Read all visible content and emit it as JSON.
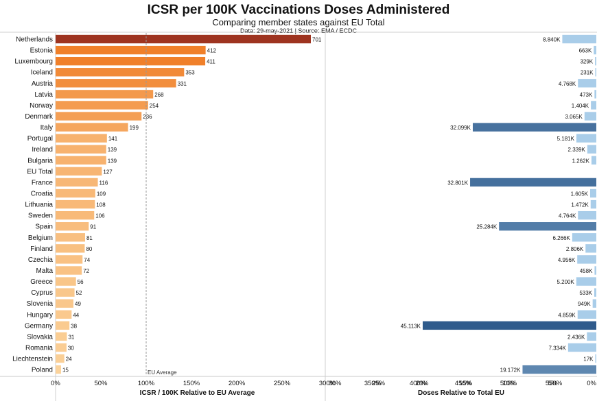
{
  "header": {
    "title": "ICSR per 100K Vaccinations Doses Administered",
    "subtitle": "Comparing member states against EU Total",
    "meta": "Data: 29-may-2021 | Source: EMA / ECDC"
  },
  "chart_data": [
    {
      "type": "bar",
      "orientation": "horizontal",
      "categories": [
        "Netherlands",
        "Estonia",
        "Luxembourg",
        "Iceland",
        "Austria",
        "Latvia",
        "Norway",
        "Denmark",
        "Italy",
        "Portugal",
        "Ireland",
        "Bulgaria",
        "EU Total",
        "France",
        "Croatia",
        "Lithuania",
        "Sweden",
        "Spain",
        "Belgium",
        "Finland",
        "Czechia",
        "Malta",
        "Greece",
        "Cyprus",
        "Slovenia",
        "Hungary",
        "Germany",
        "Slovakia",
        "Romania",
        "Liechtenstein",
        "Poland"
      ],
      "values": [
        701,
        412,
        411,
        353,
        331,
        268,
        254,
        236,
        199,
        141,
        139,
        139,
        127,
        116,
        109,
        108,
        106,
        91,
        81,
        80,
        74,
        72,
        56,
        52,
        49,
        44,
        38,
        31,
        30,
        24,
        15
      ],
      "value_labels": [
        "701",
        "412",
        "411",
        "353",
        "331",
        "268",
        "254",
        "236",
        "199",
        "141",
        "139",
        "139",
        "127",
        "116",
        "109",
        "108",
        "106",
        "91",
        "81",
        "80",
        "74",
        "72",
        "56",
        "52",
        "49",
        "44",
        "38",
        "31",
        "30",
        "24",
        "15"
      ],
      "xlabel": "ICSR / 100K Relative to EU Average",
      "x_ticks": [
        "0%",
        "50%",
        "100%",
        "150%",
        "200%",
        "250%",
        "300%",
        "350%",
        "400%",
        "450%",
        "500%",
        "550%"
      ],
      "reference_line": {
        "label": "EU Average",
        "value": 127
      },
      "colors": {
        "dark": "#9e3420",
        "mid": "#f07f28",
        "light": "#fbd39c"
      }
    },
    {
      "type": "bar",
      "orientation": "horizontal",
      "direction": "right-to-left",
      "categories": [
        "Netherlands",
        "Estonia",
        "Luxembourg",
        "Iceland",
        "Austria",
        "Latvia",
        "Norway",
        "Denmark",
        "Italy",
        "Portugal",
        "Ireland",
        "Bulgaria",
        "EU Total",
        "France",
        "Croatia",
        "Lithuania",
        "Sweden",
        "Spain",
        "Belgium",
        "Finland",
        "Czechia",
        "Malta",
        "Greece",
        "Cyprus",
        "Slovenia",
        "Hungary",
        "Germany",
        "Slovakia",
        "Romania",
        "Liechtenstein",
        "Poland"
      ],
      "values": [
        8840,
        663,
        329,
        231,
        4768,
        473,
        1404,
        3065,
        32099,
        5181,
        2339,
        1262,
        null,
        32801,
        1605,
        1472,
        4764,
        25284,
        6266,
        2806,
        4956,
        458,
        5200,
        533,
        949,
        4859,
        45113,
        2436,
        7334,
        17,
        19172
      ],
      "value_labels": [
        "8.840K",
        "663K",
        "329K",
        "231K",
        "4.768K",
        "473K",
        "1.404K",
        "3.065K",
        "32.099K",
        "5.181K",
        "2.339K",
        "1.262K",
        "",
        "32.801K",
        "1.605K",
        "1.472K",
        "4.764K",
        "25.284K",
        "6.266K",
        "2.806K",
        "4.956K",
        "458K",
        "5.200K",
        "533K",
        "949K",
        "4.859K",
        "45.113K",
        "2.436K",
        "7.334K",
        "17K",
        "19.172K"
      ],
      "xlabel": "Doses Relative to Total EU",
      "x_ticks": [
        "30%",
        "25%",
        "20%",
        "15%",
        "10%",
        "5%",
        "0%"
      ],
      "colors": {
        "dark": "#2f5b8c",
        "light": "#a9cde9"
      }
    }
  ]
}
